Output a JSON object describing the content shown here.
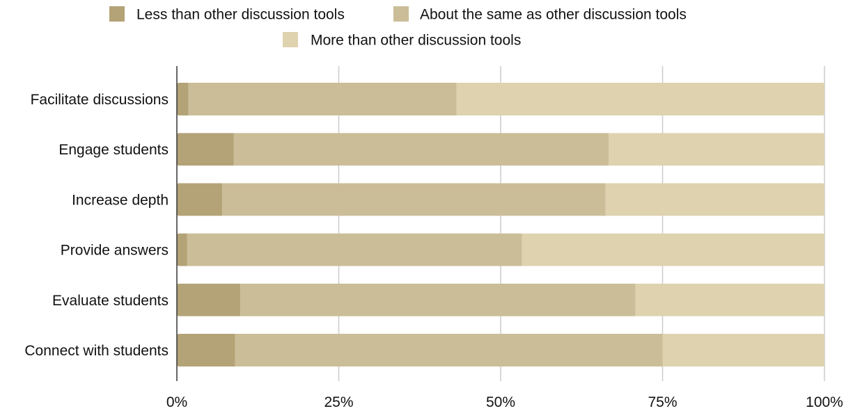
{
  "chart_data": {
    "type": "bar",
    "orientation": "horizontal",
    "stacked": "percent",
    "categories": [
      "Facilitate discussions",
      "Engage students",
      "Increase depth",
      "Provide answers",
      "Evaluate students",
      "Connect with students"
    ],
    "series": [
      {
        "name": "Less than other discussion tools",
        "color": "#b3a377",
        "values": [
          1.8,
          8.8,
          7.0,
          1.6,
          9.8,
          9.0
        ]
      },
      {
        "name": "About the same as other discussion tools",
        "color": "#cbbd97",
        "values": [
          41.4,
          57.9,
          59.2,
          51.7,
          61.0,
          66.0
        ]
      },
      {
        "name": "More than other discussion tools",
        "color": "#ded2af",
        "values": [
          56.8,
          33.3,
          33.8,
          46.7,
          29.2,
          25.0
        ]
      }
    ],
    "xlim": [
      0,
      100
    ],
    "xticks": [
      "0%",
      "25%",
      "50%",
      "75%",
      "100%"
    ],
    "xtick_values": [
      0,
      25,
      50,
      75,
      100
    ],
    "grid": "vertical",
    "legend_position": "top"
  }
}
